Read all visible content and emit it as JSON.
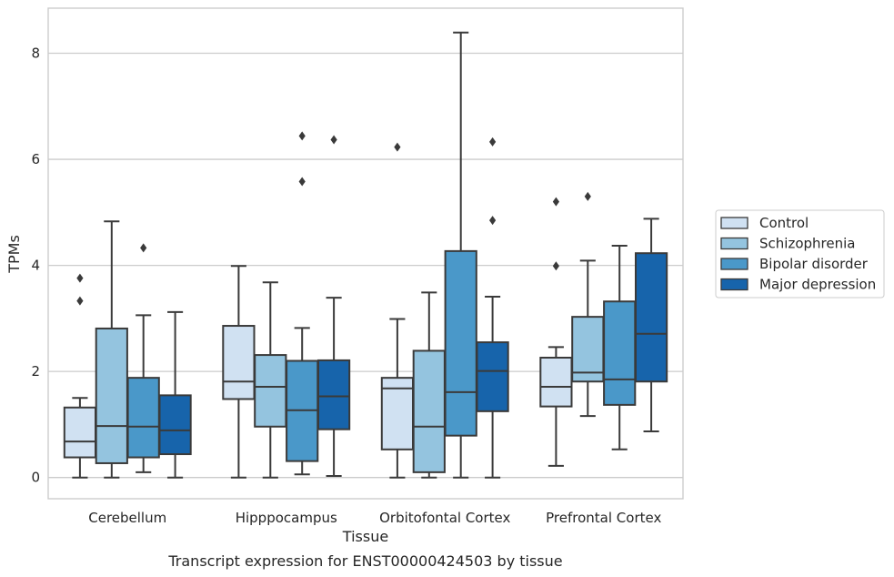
{
  "chart_data": {
    "type": "box",
    "xlabel": "Tissue",
    "ylabel": "TPMs",
    "caption": "Transcript expression for ENST00000424503 by tissue",
    "ylim": [
      -0.4,
      8.85
    ],
    "yticks": [
      0,
      2,
      4,
      6,
      8
    ],
    "grid": "horizontal",
    "legend_position": "right",
    "categories": [
      "Cerebellum",
      "Hipppocampus",
      "Orbitofontal Cortex",
      "Prefrontal Cortex"
    ],
    "series": [
      {
        "name": "Control",
        "color": "#d0e1f2",
        "boxes": [
          {
            "whisker_low": 0.0,
            "q1": 0.38,
            "median": 0.68,
            "q3": 1.32,
            "whisker_high": 1.5,
            "outliers": [
              3.33,
              3.76
            ]
          },
          {
            "whisker_low": 0.0,
            "q1": 1.48,
            "median": 1.81,
            "q3": 2.86,
            "whisker_high": 3.99,
            "outliers": []
          },
          {
            "whisker_low": 0.0,
            "q1": 0.53,
            "median": 1.68,
            "q3": 1.88,
            "whisker_high": 2.99,
            "outliers": [
              6.23
            ]
          },
          {
            "whisker_low": 0.22,
            "q1": 1.34,
            "median": 1.71,
            "q3": 2.26,
            "whisker_high": 2.46,
            "outliers": [
              3.99,
              5.2
            ]
          }
        ]
      },
      {
        "name": "Schizophrenia",
        "color": "#94c4df",
        "boxes": [
          {
            "whisker_low": 0.0,
            "q1": 0.27,
            "median": 0.97,
            "q3": 2.81,
            "whisker_high": 4.83,
            "outliers": []
          },
          {
            "whisker_low": 0.0,
            "q1": 0.96,
            "median": 1.71,
            "q3": 2.31,
            "whisker_high": 3.68,
            "outliers": []
          },
          {
            "whisker_low": 0.0,
            "q1": 0.1,
            "median": 0.96,
            "q3": 2.39,
            "whisker_high": 3.49,
            "outliers": []
          },
          {
            "whisker_low": 1.16,
            "q1": 1.81,
            "median": 1.98,
            "q3": 3.03,
            "whisker_high": 4.09,
            "outliers": [
              5.3
            ]
          }
        ]
      },
      {
        "name": "Bipolar disorder",
        "color": "#4a98c9",
        "boxes": [
          {
            "whisker_low": 0.1,
            "q1": 0.38,
            "median": 0.96,
            "q3": 1.88,
            "whisker_high": 3.06,
            "outliers": [
              4.33
            ]
          },
          {
            "whisker_low": 0.06,
            "q1": 0.31,
            "median": 1.27,
            "q3": 2.2,
            "whisker_high": 2.82,
            "outliers": [
              5.58,
              6.44
            ]
          },
          {
            "whisker_low": 0.0,
            "q1": 0.79,
            "median": 1.61,
            "q3": 4.27,
            "whisker_high": 8.39,
            "outliers": []
          },
          {
            "whisker_low": 0.53,
            "q1": 1.37,
            "median": 1.85,
            "q3": 3.32,
            "whisker_high": 4.37,
            "outliers": []
          }
        ]
      },
      {
        "name": "Major depression",
        "color": "#1764ab",
        "boxes": [
          {
            "whisker_low": 0.0,
            "q1": 0.44,
            "median": 0.89,
            "q3": 1.55,
            "whisker_high": 3.12,
            "outliers": []
          },
          {
            "whisker_low": 0.03,
            "q1": 0.91,
            "median": 1.53,
            "q3": 2.21,
            "whisker_high": 3.39,
            "outliers": [
              6.37
            ]
          },
          {
            "whisker_low": 0.0,
            "q1": 1.25,
            "median": 2.01,
            "q3": 2.55,
            "whisker_high": 3.41,
            "outliers": [
              4.85,
              6.33
            ]
          },
          {
            "whisker_low": 0.87,
            "q1": 1.81,
            "median": 2.71,
            "q3": 4.23,
            "whisker_high": 4.88,
            "outliers": []
          }
        ]
      }
    ]
  }
}
